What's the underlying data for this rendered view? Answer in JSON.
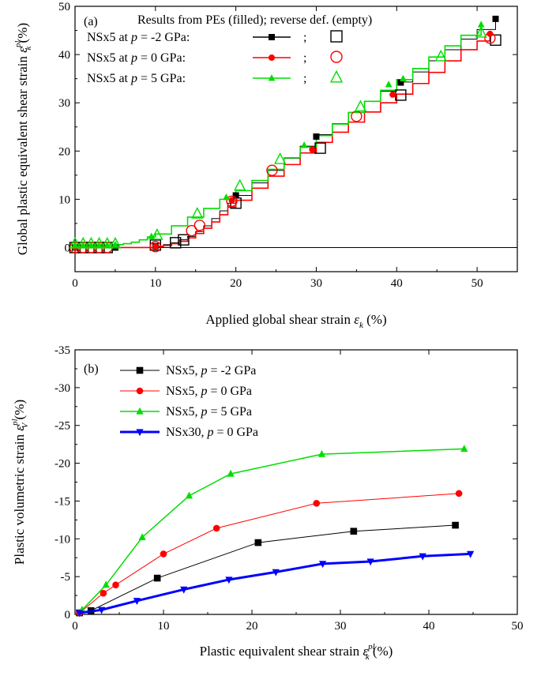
{
  "chart_data": [
    {
      "type": "line",
      "panel_label": "(a)",
      "legend_header": "Results from PEs (filled); reverse def. (empty)",
      "legend_sep": ";",
      "xlabel": "Applied global shear strain",
      "xlabel_symbol": "ε",
      "xlabel_sub": "k",
      "xlabel_unit": "(%)",
      "ylabel": "Global plastic equivalent shear strain",
      "ylabel_symbol": "ε",
      "ylabel_sup": "pl",
      "ylabel_sub": "k",
      "ylabel_unit": "(%)",
      "xlim": [
        0,
        55
      ],
      "ylim": [
        -5,
        50
      ],
      "xticks": [
        0,
        10,
        20,
        30,
        40,
        50
      ],
      "yticks": [
        0,
        10,
        20,
        30,
        40,
        50
      ],
      "grid": false,
      "legend_position": "top-left",
      "series": [
        {
          "name": "NSx5 at p = -2 GPa:",
          "color": "#000000",
          "marker": "square",
          "x": [
            0,
            5,
            9,
            10,
            11,
            12,
            13,
            14,
            15,
            16,
            17,
            18,
            19,
            20,
            22,
            24,
            26,
            28,
            30,
            32,
            34,
            36,
            38,
            40,
            42,
            44,
            46,
            48,
            50,
            52.3
          ],
          "y": [
            0,
            0,
            0,
            0.3,
            0.6,
            1.0,
            1.6,
            2.3,
            3.3,
            4.5,
            6.0,
            7.6,
            9.2,
            10.8,
            13.4,
            16.0,
            18.5,
            21.0,
            23.4,
            25.7,
            28.0,
            30.3,
            32.4,
            34.3,
            36.4,
            38.7,
            41.0,
            43.2,
            45.2,
            47.4
          ],
          "marker_x": [
            0,
            5,
            10,
            20,
            30,
            40.5,
            52.3
          ],
          "marker_y": [
            0,
            0,
            0.3,
            10.8,
            23.0,
            34.2,
            47.4
          ],
          "reverse_x": [
            0,
            1,
            2,
            3,
            4,
            10,
            12.5,
            13.5,
            20,
            30.5,
            40.5,
            52.3
          ],
          "reverse_y": [
            0,
            0,
            0,
            0,
            0,
            0.5,
            1.0,
            1.6,
            9.2,
            20.6,
            31.6,
            43.0
          ]
        },
        {
          "name": "NSx5 at p = 0 GPa:",
          "color": "#ff0000",
          "marker": "circle",
          "x": [
            0,
            5,
            9,
            10,
            11,
            12,
            13,
            14,
            15,
            16,
            17,
            18,
            19,
            20,
            22,
            24,
            26,
            28,
            30,
            32,
            34,
            36,
            38,
            40,
            42,
            44,
            46,
            48,
            50,
            51.6
          ],
          "y": [
            0,
            0,
            0,
            0.2,
            0.4,
            0.8,
            1.3,
            2.0,
            2.9,
            4.0,
            5.3,
            6.8,
            8.4,
            9.8,
            12.3,
            14.8,
            17.2,
            19.6,
            21.8,
            23.9,
            26.0,
            28.1,
            30.0,
            31.8,
            34.0,
            36.3,
            38.7,
            41.0,
            42.8,
            44.3
          ],
          "marker_x": [
            0,
            10,
            19.5,
            29.5,
            39.5,
            51.6
          ],
          "marker_y": [
            0,
            0.2,
            9.8,
            20.3,
            31.7,
            44.3
          ],
          "reverse_x": [
            0,
            1,
            2,
            3,
            4,
            10,
            14.5,
            15.5,
            19.5,
            24.5,
            35,
            51.6
          ],
          "reverse_y": [
            0,
            0,
            0,
            0,
            0,
            0.2,
            3.5,
            4.6,
            9.6,
            16.0,
            27.2,
            43.4
          ]
        },
        {
          "name": "NSx5 at p = 5 GPa:",
          "color": "#00dd00",
          "marker": "triangle",
          "x": [
            0,
            1,
            2,
            3,
            4,
            5,
            6,
            7,
            8,
            9,
            10,
            12,
            14,
            16,
            18,
            20,
            22,
            24,
            26,
            28,
            30,
            32,
            34,
            36,
            38,
            40,
            42,
            44,
            46,
            48,
            50.5
          ],
          "y": [
            0.5,
            0.5,
            0.5,
            0.5,
            0.5,
            0.6,
            0.8,
            1.1,
            1.6,
            2.2,
            2.8,
            4.5,
            6.3,
            8.1,
            10.0,
            11.8,
            13.9,
            16.2,
            18.6,
            20.8,
            23.2,
            25.6,
            28.0,
            30.3,
            32.6,
            34.8,
            37.1,
            39.5,
            41.8,
            44.0,
            46.2
          ],
          "marker_x": [
            0,
            1,
            2,
            3,
            4,
            5,
            9.5,
            18.8,
            28.5,
            39,
            40.8,
            50.5
          ],
          "marker_y": [
            0.5,
            0.5,
            0.5,
            0.5,
            0.5,
            0.6,
            2.3,
            10.4,
            21.2,
            33.8,
            35.0,
            46.2
          ],
          "reverse_x": [
            0,
            1,
            2,
            3,
            4,
            5,
            10.2,
            15.2,
            20.5,
            25.5,
            35.5,
            45.5,
            50.5
          ],
          "reverse_y": [
            0.8,
            0.8,
            0.8,
            0.8,
            0.8,
            0.8,
            2.6,
            7.0,
            12.8,
            18.3,
            29.2,
            39.6,
            44.5
          ]
        }
      ]
    },
    {
      "type": "line",
      "panel_label": "(b)",
      "xlabel": "Plastic equivalent shear strain",
      "xlabel_symbol": "ε",
      "xlabel_sup": "pl",
      "xlabel_sub": "k",
      "xlabel_unit": "(%)",
      "ylabel": "Plastic volumetric strain",
      "ylabel_symbol": "ε",
      "ylabel_sup": "pl",
      "ylabel_sub": "V",
      "ylabel_unit": "(%)",
      "xlim": [
        0,
        50
      ],
      "ylim": [
        0,
        -35
      ],
      "xticks": [
        0,
        10,
        20,
        30,
        40,
        50
      ],
      "yticks": [
        0,
        -5,
        -10,
        -15,
        -20,
        -25,
        -30,
        -35
      ],
      "grid": false,
      "legend_position": "top-left",
      "series": [
        {
          "name": "NSx5, p = -2 GPa",
          "color": "#000000",
          "marker": "square",
          "line_width": 1,
          "x": [
            0.5,
            1.8,
            9.3,
            20.7,
            31.5,
            43.0
          ],
          "y": [
            -0.2,
            -0.5,
            -4.8,
            -9.5,
            -11.0,
            -11.8
          ]
        },
        {
          "name": "NSx5, p = 0 GPa",
          "color": "#ff0000",
          "marker": "circle",
          "line_width": 1,
          "x": [
            0.5,
            3.2,
            4.6,
            10.0,
            16.0,
            27.3,
            43.4
          ],
          "y": [
            -0.2,
            -2.8,
            -3.9,
            -8.0,
            -11.4,
            -14.7,
            -16.0
          ]
        },
        {
          "name": "NSx5, p = 5 GPa",
          "color": "#00dd00",
          "marker": "triangle",
          "line_width": 1.5,
          "x": [
            0.8,
            3.5,
            7.6,
            12.9,
            17.6,
            27.9,
            44.0
          ],
          "y": [
            -0.6,
            -3.9,
            -10.2,
            -15.7,
            -18.6,
            -21.2,
            -21.9
          ]
        },
        {
          "name": "NSx30, p = 0 GPa",
          "color": "#0000ff",
          "marker": "triangle-down",
          "line_width": 3,
          "x": [
            0.5,
            3.0,
            7.0,
            12.3,
            17.4,
            22.7,
            28.0,
            33.4,
            39.3,
            44.7
          ],
          "y": [
            -0.2,
            -0.6,
            -1.8,
            -3.3,
            -4.6,
            -5.6,
            -6.7,
            -7.0,
            -7.7,
            -8.0
          ]
        }
      ]
    }
  ]
}
